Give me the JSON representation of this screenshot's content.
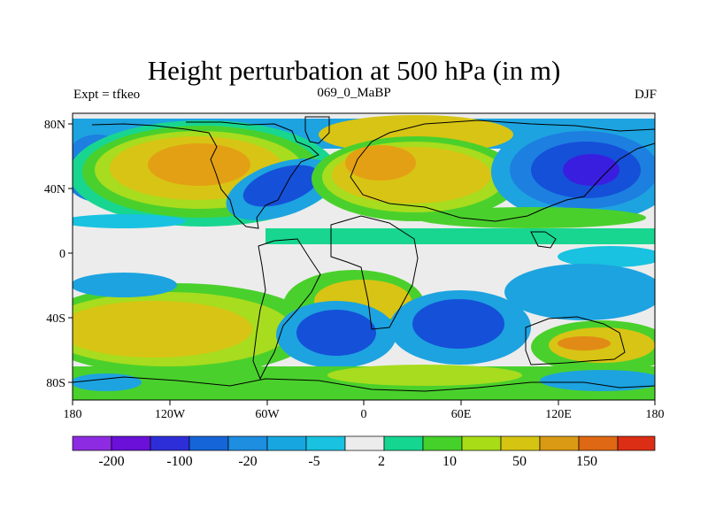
{
  "title": "Height perturbation at 500 hPa (in m)",
  "left_label": "Expt = tfkeo",
  "center_label": "069_0_MaBP",
  "right_label": "DJF",
  "lat_ticks": [
    "80N",
    "40N",
    "0",
    "40S",
    "80S"
  ],
  "lon_ticks": [
    "180",
    "120W",
    "60W",
    "0",
    "60E",
    "120E",
    "180"
  ],
  "colorbar": {
    "colors": [
      "#8d2be2",
      "#6a10d8",
      "#2e2ed8",
      "#1565d8",
      "#1d8ee0",
      "#18a6e0",
      "#18c2e0",
      "#ececec",
      "#15d690",
      "#46d12a",
      "#a8dc16",
      "#d6c412",
      "#da9a14",
      "#de6814",
      "#dc2e14"
    ],
    "labels": [
      "-200",
      "-100",
      "-20",
      "-5",
      "2",
      "10",
      "50",
      "150"
    ]
  },
  "field": {
    "colors": {
      "high_large": "#e3a014",
      "high_med": "#d8c414",
      "high_small": "#a8dc1e",
      "pos_light": "#4ad02c",
      "pos_teal": "#18d690",
      "neutral": "#ececec",
      "neg_light": "#18c2e0",
      "neg_mid": "#1da3e0",
      "neg_med": "#1d7fe0",
      "neg_strong": "#1550d8",
      "neg_vstrong": "#3a1ee0",
      "peak_high": "#e28a16"
    }
  }
}
